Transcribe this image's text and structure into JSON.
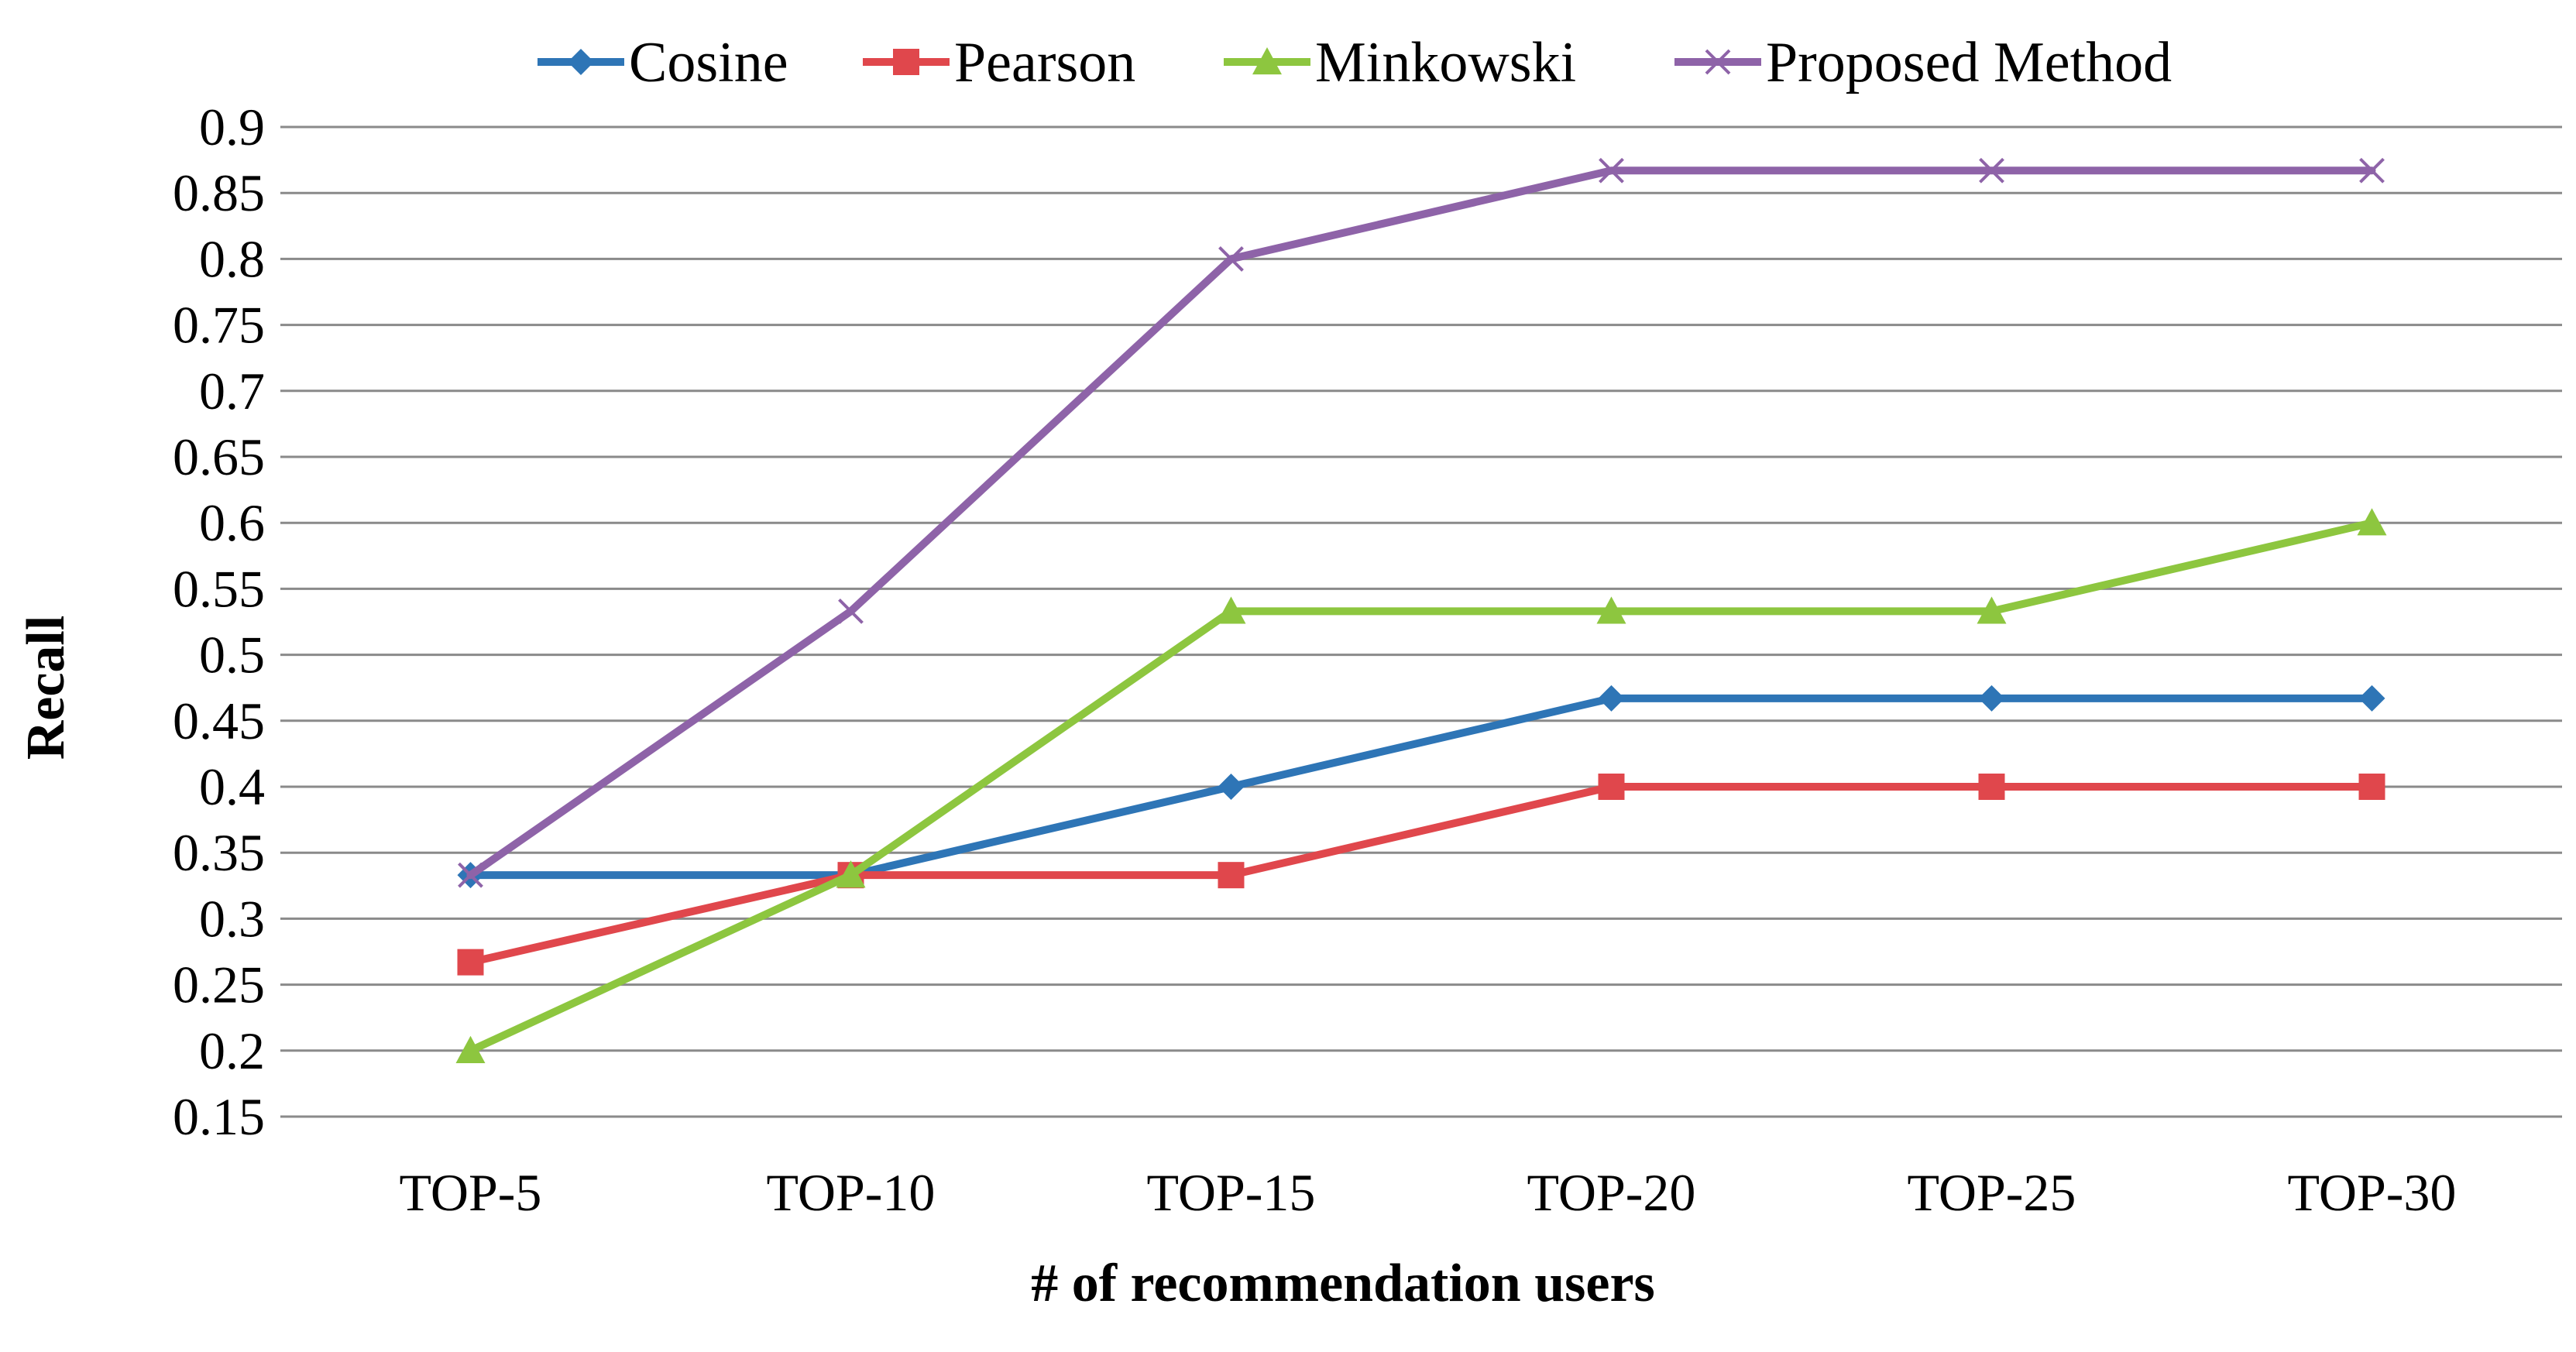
{
  "chart_data": {
    "type": "line",
    "title": "",
    "xlabel": "# of recommendation users",
    "ylabel": "Recall",
    "categories": [
      "TOP-5",
      "TOP-10",
      "TOP-15",
      "TOP-20",
      "TOP-25",
      "TOP-30"
    ],
    "ylim": [
      0.15,
      0.9
    ],
    "yticks": [
      "0.15",
      "0.2",
      "0.25",
      "0.3",
      "0.35",
      "0.4",
      "0.45",
      "0.5",
      "0.55",
      "0.6",
      "0.65",
      "0.7",
      "0.75",
      "0.8",
      "0.85",
      "0.9"
    ],
    "grid": true,
    "legend_position": "top",
    "series": [
      {
        "name": "Cosine",
        "color": "#2E75B6",
        "marker": "diamond",
        "values": [
          0.333,
          0.333,
          0.4,
          0.467,
          0.467,
          0.467
        ]
      },
      {
        "name": "Pearson",
        "color": "#E0474C",
        "marker": "square",
        "values": [
          0.267,
          0.333,
          0.333,
          0.4,
          0.4,
          0.4
        ]
      },
      {
        "name": "Minkowski",
        "color": "#8DC63F",
        "marker": "triangle",
        "values": [
          0.2,
          0.333,
          0.533,
          0.533,
          0.533,
          0.6
        ]
      },
      {
        "name": "Proposed Method",
        "color": "#8E63A8",
        "marker": "x",
        "values": [
          0.333,
          0.533,
          0.8,
          0.867,
          0.867,
          0.867
        ]
      }
    ]
  }
}
